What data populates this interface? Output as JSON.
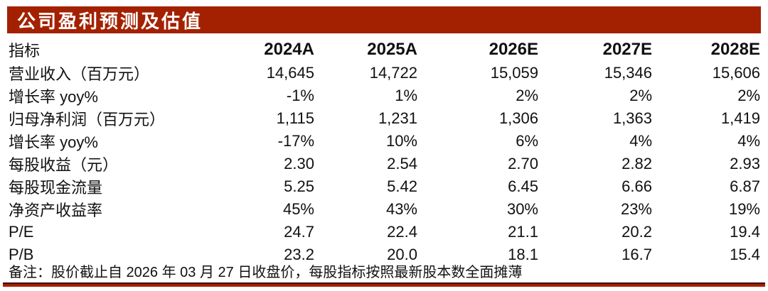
{
  "title": "公司盈利预测及估值",
  "colors": {
    "accent": "#A32100",
    "title_text": "#ffffff",
    "body_text": "#111111"
  },
  "table": {
    "headers": [
      "指标",
      "2024A",
      "2025A",
      "2026E",
      "2027E",
      "2028E"
    ],
    "rows": [
      {
        "label": "营业收入（百万元）",
        "values": [
          "14,645",
          "14,722",
          "15,059",
          "15,346",
          "15,606"
        ]
      },
      {
        "label": "增长率 yoy%",
        "values": [
          "-1%",
          "1%",
          "2%",
          "2%",
          "2%"
        ]
      },
      {
        "label": "归母净利润（百万元）",
        "values": [
          "1,115",
          "1,231",
          "1,306",
          "1,363",
          "1,419"
        ]
      },
      {
        "label": "增长率 yoy%",
        "values": [
          "-17%",
          "10%",
          "6%",
          "4%",
          "4%"
        ]
      },
      {
        "label": "每股收益（元）",
        "values": [
          "2.30",
          "2.54",
          "2.70",
          "2.82",
          "2.93"
        ]
      },
      {
        "label": "每股现金流量",
        "values": [
          "5.25",
          "5.42",
          "6.45",
          "6.66",
          "6.87"
        ]
      },
      {
        "label": "净资产收益率",
        "values": [
          "45%",
          "43%",
          "30%",
          "23%",
          "19%"
        ]
      },
      {
        "label": "P/E",
        "values": [
          "24.7",
          "22.4",
          "21.1",
          "20.2",
          "19.4"
        ]
      },
      {
        "label": "P/B",
        "values": [
          "23.2",
          "20.0",
          "18.1",
          "16.7",
          "15.4"
        ]
      }
    ]
  },
  "note": "备注：股价截止自 2026 年 03 月 27 日收盘价，每股指标按照最新股本数全面摊薄"
}
